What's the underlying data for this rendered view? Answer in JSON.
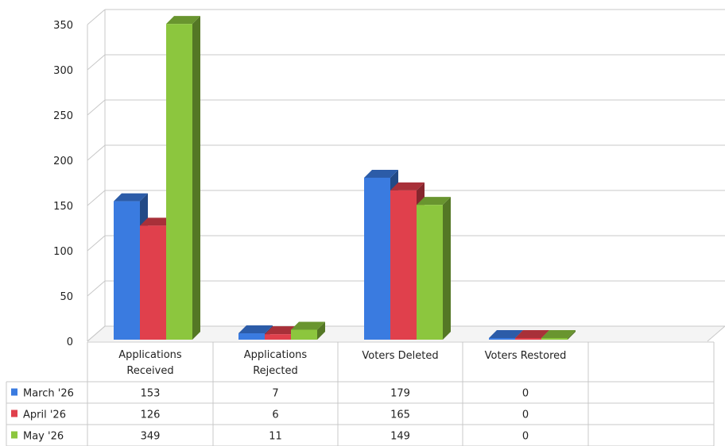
{
  "chart_data": {
    "type": "bar",
    "categories": [
      [
        "Applications",
        "Received"
      ],
      [
        "Applications",
        "Rejected"
      ],
      [
        "Voters Deleted"
      ],
      [
        "Voters Restored"
      ]
    ],
    "series": [
      {
        "name": "March '26",
        "color": "#3a7be0",
        "values": [
          153,
          7,
          179,
          0
        ]
      },
      {
        "name": "April '26",
        "color": "#e0404c",
        "values": [
          126,
          6,
          165,
          0
        ]
      },
      {
        "name": "May '26",
        "color": "#8cc63e",
        "values": [
          349,
          11,
          149,
          0
        ]
      }
    ],
    "ylim": [
      0,
      350
    ],
    "yticks": [
      0,
      50,
      100,
      150,
      200,
      250,
      300,
      350
    ],
    "grid": true,
    "legend": "data-table",
    "style": "3d-clustered-column"
  }
}
